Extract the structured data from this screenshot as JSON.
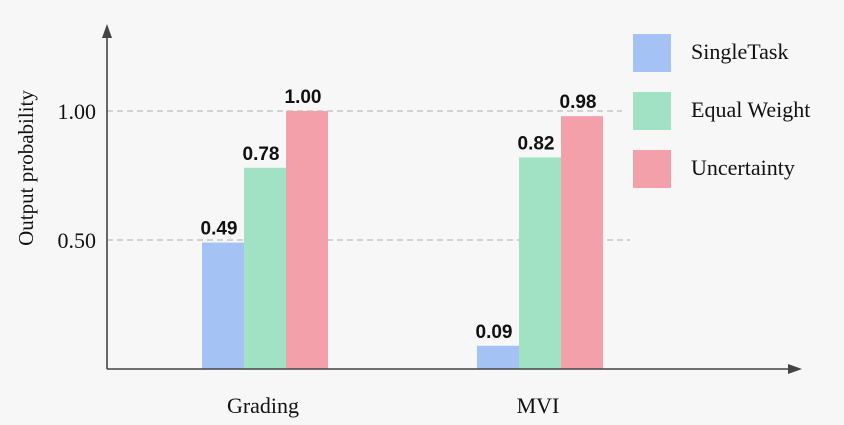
{
  "chart_data": {
    "type": "bar",
    "categories": [
      "Grading",
      "MVI"
    ],
    "series": [
      {
        "name": "SingleTask",
        "values": [
          0.49,
          0.09
        ],
        "color": "#a4c2f4"
      },
      {
        "name": "Equal Weight",
        "values": [
          0.78,
          0.82
        ],
        "color": "#a0e2c3"
      },
      {
        "name": "Uncertainty",
        "values": [
          1.0,
          0.98
        ],
        "color": "#f4a0ab"
      }
    ],
    "value_labels": [
      [
        "0.49",
        "0.09"
      ],
      [
        "0.78",
        "0.82"
      ],
      [
        "1.00",
        "0.98"
      ]
    ],
    "title": "",
    "xlabel": "",
    "ylabel": "Output probability",
    "yticks": [
      0.5,
      1.0
    ],
    "ytick_labels": [
      "0.50",
      "1.00"
    ],
    "ylim": [
      0,
      1.3
    ],
    "grid": "dashed horizontal at y ticks",
    "legend_position": "top-right"
  }
}
